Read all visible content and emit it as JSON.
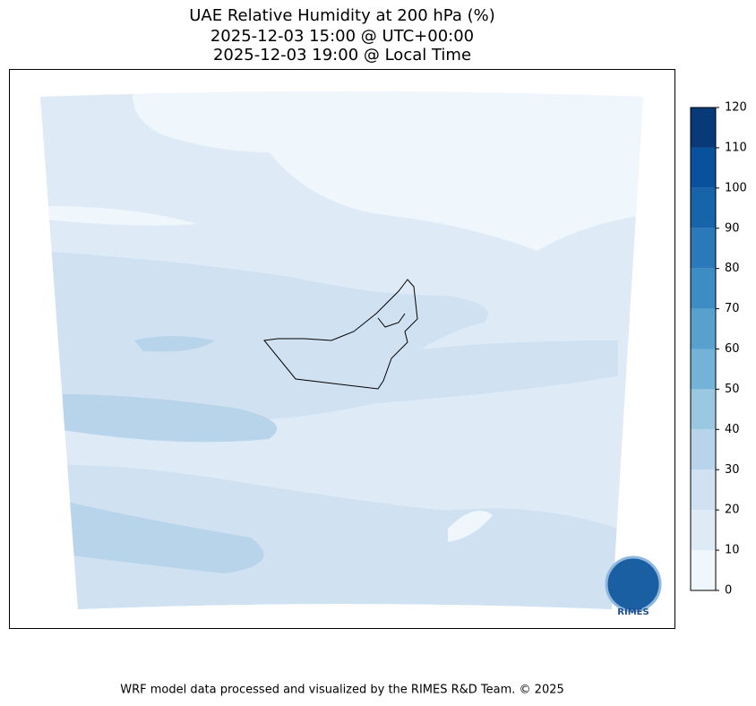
{
  "title": [
    "UAE Relative Humidity at 200 hPa (%)",
    "2025-12-03 15:00 @ UTC+00:00",
    "2025-12-03 19:00 @ Local Time"
  ],
  "colorbar": {
    "lim": [
      0,
      120
    ],
    "ticks": [
      0,
      10,
      20,
      30,
      40,
      50,
      60,
      70,
      80,
      90,
      100,
      110,
      120
    ],
    "colors": [
      "#eff6fc",
      "#deebf7",
      "#d0e1f2",
      "#b7d4ea",
      "#9ac8e0",
      "#73b3d8",
      "#58a1cf",
      "#3d8dc4",
      "#2a7ab9",
      "#1764ab",
      "#08519c",
      "#083a7a"
    ]
  },
  "logo": "RIMES",
  "footer": "WRF model data processed and visualized by the RIMES R&D Team. © 2025"
}
